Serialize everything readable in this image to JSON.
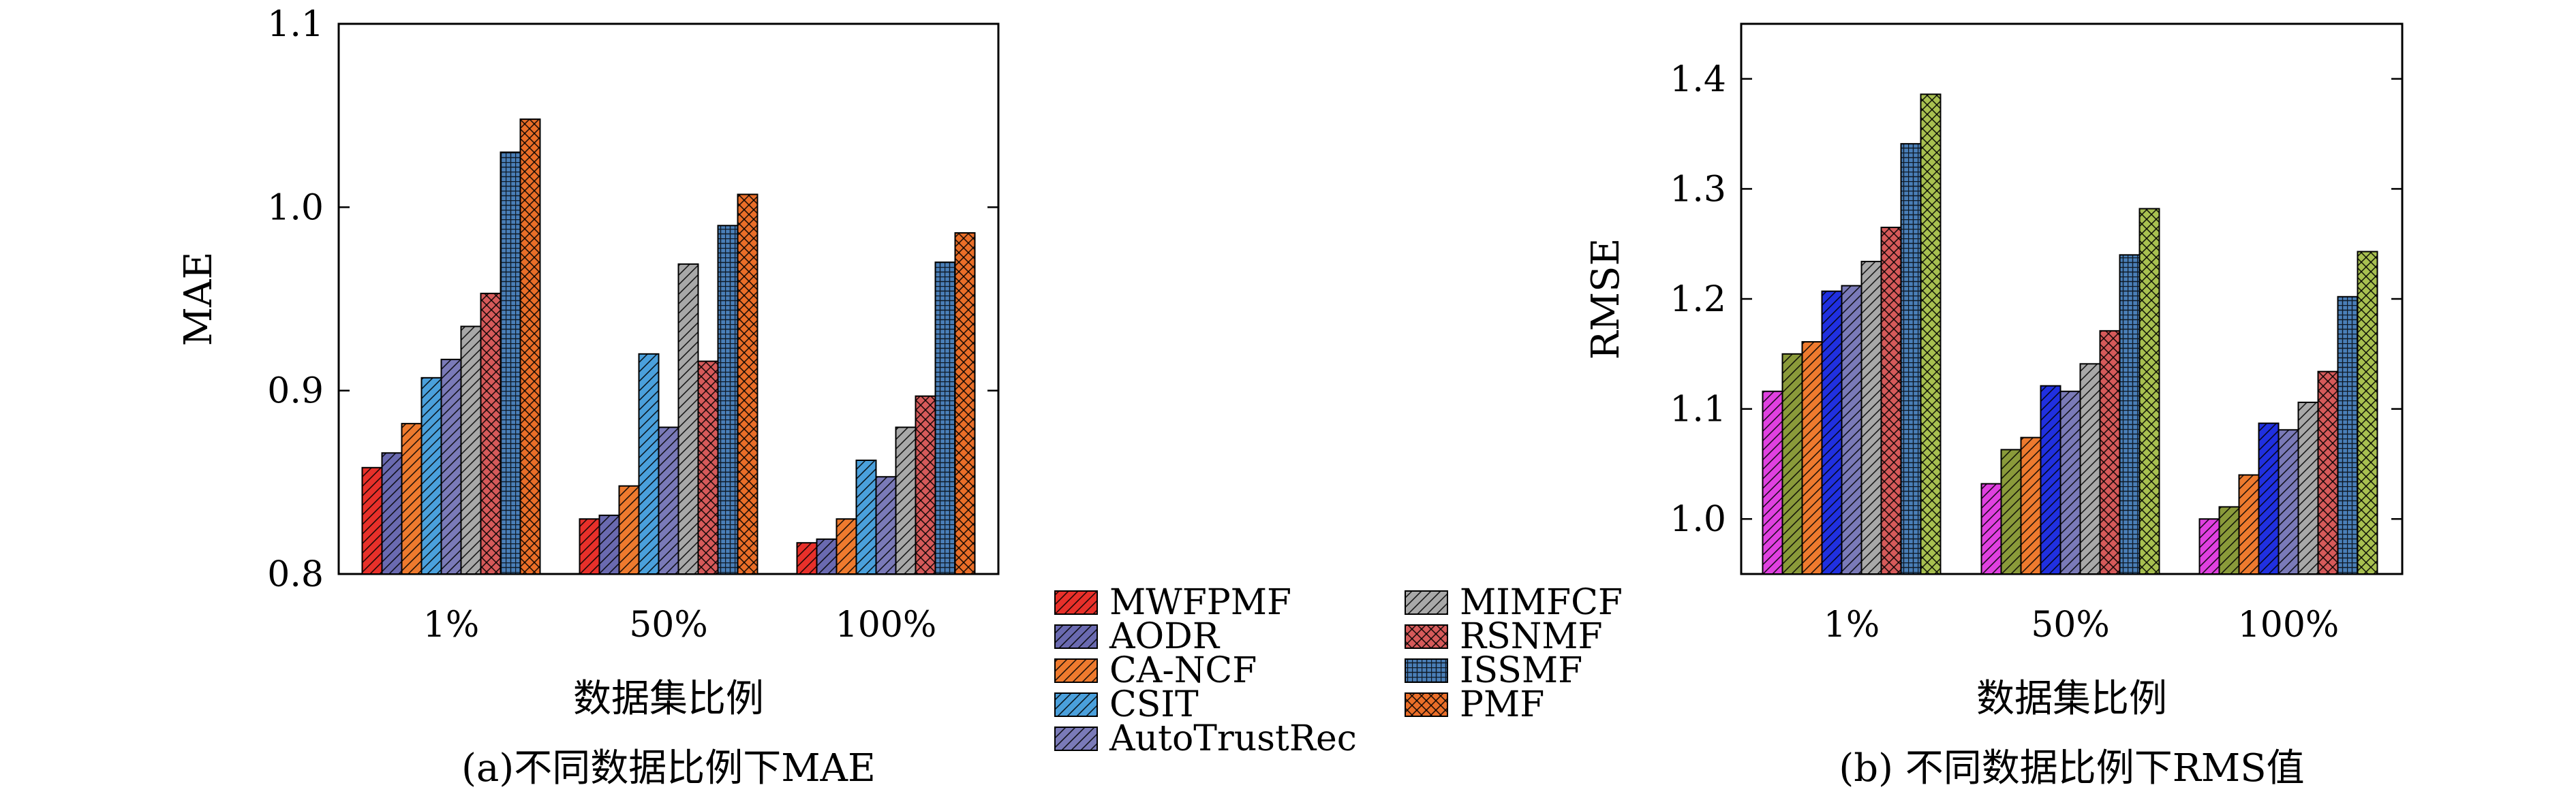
{
  "chart_data": [
    {
      "type": "bar",
      "panel_label": "(a)不同数据比例下MAE",
      "xlabel": "数据集比例",
      "ylabel": "MAE",
      "categories": [
        "1%",
        "50%",
        "100%"
      ],
      "ylim": [
        0.8,
        1.1
      ],
      "yticks": [
        "0.8",
        "0.9",
        "1.0",
        "1.1"
      ],
      "grid": false,
      "series": [
        {
          "name": "MWFPMF",
          "values": [
            0.858,
            0.83,
            0.817
          ]
        },
        {
          "name": "AODR",
          "values": [
            0.866,
            0.832,
            0.819
          ]
        },
        {
          "name": "CA-NCF",
          "values": [
            0.882,
            0.848,
            0.83
          ]
        },
        {
          "name": "CSIT",
          "values": [
            0.907,
            0.92,
            0.862
          ]
        },
        {
          "name": "AutoTrustRec",
          "values": [
            0.917,
            0.88,
            0.853
          ]
        },
        {
          "name": "MIMFCF",
          "values": [
            0.935,
            0.969,
            0.88
          ]
        },
        {
          "name": "RSNMF",
          "values": [
            0.953,
            0.916,
            0.897
          ]
        },
        {
          "name": "ISSMF",
          "values": [
            1.03,
            0.99,
            0.97
          ]
        },
        {
          "name": "PMF",
          "values": [
            1.048,
            1.007,
            0.986
          ]
        }
      ]
    },
    {
      "type": "bar",
      "panel_label": "(b) 不同数据比例下RMS值",
      "xlabel": "数据集比例",
      "ylabel": "RMSE",
      "categories": [
        "1%",
        "50%",
        "100%"
      ],
      "ylim": [
        0.95,
        1.45
      ],
      "yticks": [
        "1.0",
        "1.1",
        "1.2",
        "1.3",
        "1.4"
      ],
      "grid": false,
      "series": [
        {
          "values": [
            1.116,
            1.032,
            1.0
          ]
        },
        {
          "values": [
            1.15,
            1.063,
            1.011
          ]
        },
        {
          "values": [
            1.161,
            1.074,
            1.04
          ]
        },
        {
          "values": [
            1.207,
            1.121,
            1.087
          ]
        },
        {
          "values": [
            1.212,
            1.116,
            1.081
          ]
        },
        {
          "values": [
            1.234,
            1.141,
            1.106
          ]
        },
        {
          "values": [
            1.265,
            1.171,
            1.134
          ]
        },
        {
          "values": [
            1.341,
            1.24,
            1.202
          ]
        },
        {
          "values": [
            1.386,
            1.282,
            1.243
          ]
        }
      ]
    }
  ],
  "legend": {
    "placement": "bottom-center",
    "entries": [
      "MWFPMF",
      "AODR",
      "CA-NCF",
      "CSIT",
      "AutoTrustRec",
      "MIMFCF",
      "RSNMF",
      "ISSMF",
      "PMF"
    ]
  },
  "colors": {
    "a": [
      "#e8302a",
      "#6a6ab0",
      "#ee7a2e",
      "#4aa0dc",
      "#7a7ab8",
      "#a8a8a8",
      "#d65a5a",
      "#4a7fb8",
      "#ea6e28"
    ],
    "b": [
      "#e040e0",
      "#8a9a3a",
      "#ee7a2e",
      "#2030e0",
      "#7a7ab8",
      "#a8a8a8",
      "#d65a5a",
      "#4a7fb8",
      "#a8c050"
    ]
  },
  "patterns": [
    "diag",
    "diag",
    "diag",
    "diag",
    "diag",
    "diag",
    "cross",
    "grid",
    "cross"
  ]
}
